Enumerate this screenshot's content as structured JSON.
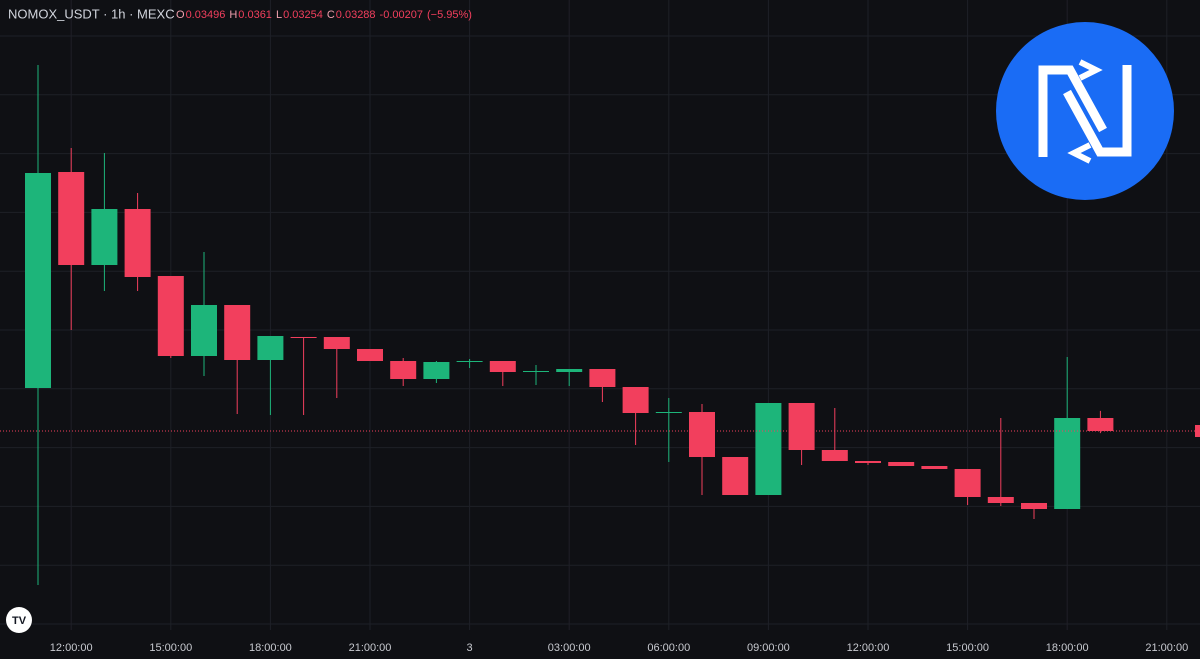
{
  "chart_data": {
    "type": "candlestick",
    "title": "NOMOX_USDT · 1h · MEXC",
    "ohlc_labels": [
      "O",
      "H",
      "L",
      "C"
    ],
    "change": -0.00207,
    "change_percent": "(−5.95%)",
    "categories": [
      null,
      "12:00:00",
      null,
      null,
      "15:00:00",
      null,
      null,
      "18:00:00",
      null,
      null,
      "21:00:00",
      null,
      null,
      "3",
      null,
      null,
      "03:00:00",
      null,
      null,
      "06:00:00",
      null,
      null,
      "09:00:00",
      null,
      null,
      "12:00:00",
      null,
      null,
      "15:00:00",
      null,
      null,
      "18:00:00",
      null,
      null,
      "21:00:00"
    ],
    "open": [
      0.03976,
      0.07432,
      0.05944,
      0.0684,
      0.05768,
      0.04488,
      0.05304,
      0.04424,
      0.04792,
      0.04792,
      0.046,
      0.04408,
      0.0412,
      0.04392,
      0.04408,
      0.04232,
      0.04232,
      0.0428,
      0.03992,
      0.03576,
      0.03592,
      0.02872,
      0.02264,
      0.03736,
      0.02984,
      0.02808,
      0.02792,
      0.02728,
      0.0268,
      0.02232,
      0.02136,
      0.0204,
      0.03496,
      null,
      null
    ],
    "high": [
      0.09144,
      0.07816,
      0.07736,
      0.07096,
      0.05768,
      0.06152,
      0.05304,
      0.04808,
      0.04792,
      0.04792,
      0.046,
      0.04456,
      0.04408,
      0.0444,
      0.04408,
      0.04344,
      0.0428,
      0.0428,
      0.03992,
      0.03816,
      0.0372,
      0.02872,
      0.03736,
      0.03736,
      0.03656,
      0.02808,
      0.02792,
      0.02728,
      0.0268,
      0.03496,
      0.02136,
      0.04472,
      0.0361,
      null,
      null
    ],
    "low": [
      0.00824,
      0.04904,
      0.05528,
      0.05528,
      0.04456,
      0.04168,
      0.0356,
      0.03544,
      0.03544,
      0.03816,
      0.04408,
      0.04008,
      0.04056,
      0.04296,
      0.04008,
      0.04024,
      0.04008,
      0.03752,
      0.03064,
      0.02792,
      0.02264,
      0.02264,
      0.02264,
      0.02744,
      0.02808,
      0.02744,
      0.02728,
      0.0268,
      0.02104,
      0.02088,
      0.0188,
      0.0204,
      0.03254,
      null,
      null
    ],
    "close": [
      0.07416,
      0.05944,
      0.0684,
      0.05752,
      0.04488,
      0.05304,
      0.04424,
      0.04808,
      0.04776,
      0.046,
      0.04408,
      0.0412,
      0.04392,
      0.04408,
      0.04232,
      0.04248,
      0.0428,
      0.03992,
      0.03576,
      0.03592,
      0.02872,
      0.02264,
      0.03736,
      0.02984,
      0.02808,
      0.02776,
      0.02728,
      0.0268,
      0.02232,
      0.02136,
      0.0204,
      0.03496,
      0.03288,
      null,
      null
    ],
    "up_color": "#1db57a",
    "down_color": "#f23f5d",
    "ylim": [
      0.00104,
      0.10184
    ],
    "grid": true
  }
}
